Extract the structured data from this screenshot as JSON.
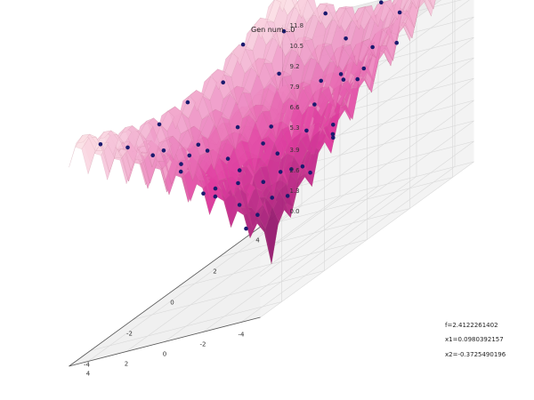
{
  "chart_data": {
    "type": "scatter",
    "subtype": "3d-surface-with-scatter",
    "title": "Gen num...0",
    "surface": {
      "function": "ackley",
      "x_range": [
        -5,
        5
      ],
      "y_range": [
        -5,
        5
      ],
      "colormap": "pink-magenta"
    },
    "axes": {
      "x_ticks": [
        "-4",
        "-2",
        "0",
        "2",
        "4"
      ],
      "y_ticks": [
        "-4",
        "-2",
        "0",
        "2",
        "4"
      ],
      "z_ticks": [
        "0.0",
        "1.3",
        "2.6",
        "3.9",
        "5.3",
        "6.6",
        "7.9",
        "9.2",
        "10.5",
        "11.8"
      ],
      "xlim": [
        -5,
        5
      ],
      "ylim": [
        -5,
        5
      ],
      "zlim": [
        0,
        11.8
      ],
      "grid": true
    },
    "points": [
      {
        "x": -1.2,
        "y": -4.5
      },
      {
        "x": -0.4,
        "y": -4.2
      },
      {
        "x": 0.5,
        "y": -4.6
      },
      {
        "x": 1.4,
        "y": -4.3
      },
      {
        "x": 2.6,
        "y": -4.4
      },
      {
        "x": 3.8,
        "y": -4.6
      },
      {
        "x": -4.6,
        "y": -1.8
      },
      {
        "x": -4.3,
        "y": -0.6
      },
      {
        "x": -4.5,
        "y": 0.7
      },
      {
        "x": -4.2,
        "y": 2.1
      },
      {
        "x": -4.6,
        "y": 3.3
      },
      {
        "x": -3.6,
        "y": 4.4
      },
      {
        "x": 4.3,
        "y": -1.4
      },
      {
        "x": 4.6,
        "y": 0.2
      },
      {
        "x": 4.2,
        "y": 1.5
      },
      {
        "x": 4.5,
        "y": 2.7
      },
      {
        "x": 3.7,
        "y": 3.9
      },
      {
        "x": 2.2,
        "y": 4.5
      },
      {
        "x": 0.8,
        "y": 4.2
      },
      {
        "x": -0.6,
        "y": 4.6
      },
      {
        "x": -1.9,
        "y": 4.3
      },
      {
        "x": -2.8,
        "y": -2.9
      },
      {
        "x": -2.1,
        "y": -1.6
      },
      {
        "x": -3.0,
        "y": 0.2
      },
      {
        "x": -2.6,
        "y": 1.7
      },
      {
        "x": -1.7,
        "y": 2.8
      },
      {
        "x": -0.3,
        "y": 3.1
      },
      {
        "x": 1.1,
        "y": 3.0
      },
      {
        "x": 2.5,
        "y": 2.6
      },
      {
        "x": 3.1,
        "y": 1.2
      },
      {
        "x": 2.9,
        "y": -0.4
      },
      {
        "x": 2.6,
        "y": -1.9
      },
      {
        "x": 1.5,
        "y": -2.9
      },
      {
        "x": 0.1,
        "y": -3.1
      },
      {
        "x": -1.3,
        "y": -3.2
      },
      {
        "x": -2.2,
        "y": 0.9
      },
      {
        "x": -1.1,
        "y": 1.9
      },
      {
        "x": 0.4,
        "y": 2.0
      },
      {
        "x": 1.8,
        "y": 1.6
      },
      {
        "x": 2.0,
        "y": 0.3
      },
      {
        "x": 1.7,
        "y": -1.1
      },
      {
        "x": 0.7,
        "y": -2.0
      },
      {
        "x": -0.6,
        "y": -2.1
      },
      {
        "x": -1.7,
        "y": -1.1
      },
      {
        "x": -1.4,
        "y": 0.2
      },
      {
        "x": -0.8,
        "y": 1.1
      },
      {
        "x": 0.3,
        "y": 1.2
      },
      {
        "x": 1.1,
        "y": 0.6
      },
      {
        "x": 1.0,
        "y": -0.6
      },
      {
        "x": 0.1,
        "y": -1.1
      },
      {
        "x": -0.7,
        "y": -0.6
      },
      {
        "x": -0.4,
        "y": 0.4
      },
      {
        "x": 0.5,
        "y": -0.2
      }
    ],
    "point_color": "#1a1a6e",
    "readouts": {
      "f": "f=2.4122261402",
      "x1": "x1=0.0980392157",
      "x2": "x2=-0.3725490196"
    }
  }
}
